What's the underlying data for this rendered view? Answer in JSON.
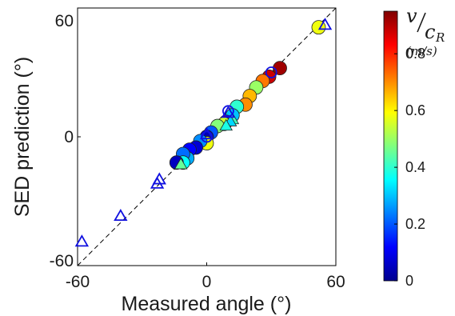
{
  "chart_data": {
    "type": "scatter",
    "title": "",
    "xlabel": "Measured angle (°)",
    "ylabel": "SED prediction (°)",
    "xlim": [
      -60,
      60
    ],
    "ylim": [
      -60,
      60
    ],
    "xticks": [
      "-60",
      "0",
      "60"
    ],
    "yticks": [
      "60",
      "0",
      "-60"
    ],
    "reference_line": {
      "style": "dashed",
      "from": [
        -60,
        -60
      ],
      "to": [
        60,
        60
      ]
    },
    "colorbar": {
      "title_main": "v",
      "title_sub": "c",
      "title_sub_index": "R",
      "unit": "(m/s)",
      "range": [
        0,
        0.95
      ],
      "ticks": [
        "0.8",
        "0.6",
        "0.4",
        "0.2",
        "0"
      ],
      "tick_values": [
        0.8,
        0.6,
        0.4,
        0.2,
        0
      ],
      "colormap": "jet"
    },
    "series": [
      {
        "marker": "filled-circle",
        "points": [
          {
            "x": 52,
            "y": 51,
            "v": 0.58
          },
          {
            "x": 34,
            "y": 32,
            "v": 0.92
          },
          {
            "x": 29,
            "y": 28,
            "v": 0.88
          },
          {
            "x": 26,
            "y": 26,
            "v": 0.72
          },
          {
            "x": 23,
            "y": 23,
            "v": 0.5
          },
          {
            "x": 20,
            "y": 19,
            "v": 0.66
          },
          {
            "x": 18,
            "y": 15,
            "v": 0.7
          },
          {
            "x": 14,
            "y": 14,
            "v": 0.4
          },
          {
            "x": 11,
            "y": 9,
            "v": 0.02
          },
          {
            "x": 12,
            "y": 10,
            "v": 0.3
          },
          {
            "x": 9,
            "y": 7,
            "v": 0.9
          },
          {
            "x": 8,
            "y": 6,
            "v": 0.55
          },
          {
            "x": 5,
            "y": 5,
            "v": 0.48
          },
          {
            "x": 2,
            "y": 2,
            "v": 0.2
          },
          {
            "x": 0,
            "y": 0,
            "v": 0.05
          },
          {
            "x": 0,
            "y": -3,
            "v": 0.58
          },
          {
            "x": -3,
            "y": -2,
            "v": 0.25
          },
          {
            "x": -5,
            "y": -5,
            "v": 0.08
          },
          {
            "x": -8,
            "y": -6,
            "v": 0.12
          },
          {
            "x": -9,
            "y": -10,
            "v": 0.28
          },
          {
            "x": -11,
            "y": -8,
            "v": 0.22
          },
          {
            "x": -11,
            "y": -12,
            "v": 0.36
          },
          {
            "x": -14,
            "y": -12,
            "v": 0.06
          }
        ]
      },
      {
        "marker": "filled-triangle",
        "points": [
          {
            "x": 12,
            "y": 8,
            "v": 0.42
          },
          {
            "x": 11,
            "y": 7,
            "v": 0.32
          },
          {
            "x": 9,
            "y": 5,
            "v": 0.38
          },
          {
            "x": -12,
            "y": -13,
            "v": 0.45
          }
        ]
      },
      {
        "marker": "open-circle",
        "points": [
          {
            "x": 30,
            "y": 30
          },
          {
            "x": 0,
            "y": 0
          },
          {
            "x": 10,
            "y": 12
          }
        ]
      },
      {
        "marker": "open-triangle",
        "points": [
          {
            "x": 55,
            "y": 52
          },
          {
            "x": 10,
            "y": 11
          },
          {
            "x": -22,
            "y": -20
          },
          {
            "x": -23,
            "y": -22
          },
          {
            "x": -40,
            "y": -37
          },
          {
            "x": -58,
            "y": -49
          },
          {
            "x": 0,
            "y": 1
          }
        ]
      }
    ]
  }
}
